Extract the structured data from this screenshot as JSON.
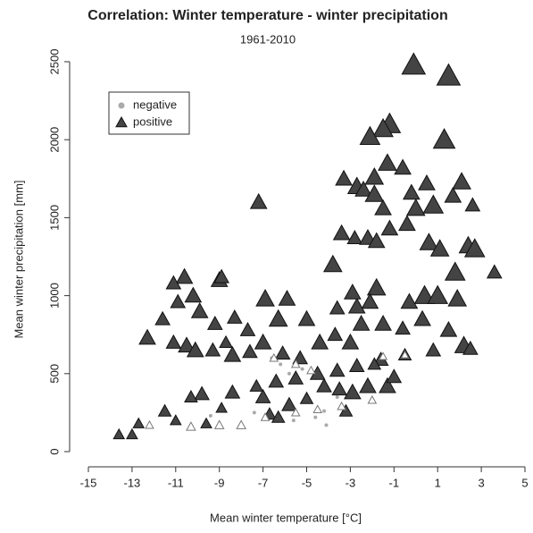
{
  "chart_data": {
    "type": "scatter",
    "title": "Correlation: Winter temperature - winter precipitation",
    "subtitle": "1961-2010",
    "x_label": "Mean winter temperature [°C]",
    "y_label": "Mean winter precipitation [mm]",
    "xlim": [
      -15,
      5
    ],
    "ylim": [
      0,
      2500
    ],
    "xticks": [
      -15,
      -13,
      -11,
      -9,
      -7,
      -5,
      -3,
      -1,
      1,
      3,
      5
    ],
    "yticks": [
      0,
      500,
      1000,
      1500,
      2000,
      2500
    ],
    "grid": false,
    "legend": "top-left",
    "series": [
      {
        "name": "negative",
        "color": "#aaaaaa",
        "marker": "circle",
        "x": [
          -6.6,
          -6.2,
          -5.8,
          -5.2,
          -4.2,
          -4.6,
          -5.6,
          -4.1,
          -9.4,
          -5,
          -3.6,
          -7.4
        ],
        "values": [
          600,
          560,
          500,
          530,
          260,
          220,
          200,
          170,
          230,
          320,
          350,
          250
        ],
        "sizes": [
          0.1,
          0.1,
          0.1,
          0.1,
          0.1,
          0.1,
          0.1,
          0.1,
          0.1,
          0.1,
          0.1,
          0.1
        ]
      },
      {
        "name": "positive",
        "color": "#444444",
        "marker": "triangle",
        "x": [
          -0.1,
          1.5,
          1.3,
          -1.2,
          -1.5,
          -2.1,
          -1.3,
          -0.6,
          -1.9,
          -3.3,
          -2.7,
          -2.4,
          -1.9,
          -0.2,
          0.5,
          -7.2,
          2.1,
          0.8,
          0,
          1.7,
          -1.5,
          2.6,
          -3.8,
          -3.4,
          -2.8,
          -2.2,
          -1.8,
          -1.2,
          -0.4,
          0.6,
          1.1,
          2.4,
          2.7,
          1.8,
          3.6,
          0.4,
          1,
          1.9,
          -0.3,
          -1.8,
          -2.1,
          -2.7,
          -3.6,
          -2.9,
          -5,
          -6.9,
          -5.9,
          -6.3,
          -7.7,
          -10.6,
          -11.1,
          -9,
          -8.9,
          -10.2,
          -9.9,
          -10.9,
          -11.6,
          -12.3,
          -11.1,
          -10.5,
          -10.1,
          -9.3,
          -8.4,
          -8.3,
          -9.2,
          -8.7,
          -7.6,
          -7,
          -6.1,
          -5.3,
          -4.4,
          -3.7,
          -3,
          -2.5,
          -1.5,
          -0.6,
          0.3,
          1.5,
          2.2,
          2.5,
          0.8,
          -0.5,
          -1.6,
          -2.7,
          -3.6,
          -4.5,
          -5.5,
          -6.4,
          -7.3,
          -8.4,
          -9.8,
          -10.3,
          -11.5,
          -12.7,
          -13.6,
          -13,
          -7,
          -5.8,
          -5,
          -4.2,
          -3.5,
          -2.9,
          -2.2,
          -1.3,
          -1,
          -1.9,
          -3.2,
          -6.7,
          -6.3,
          -8.9,
          -9.6,
          -11,
          -9,
          -10.3,
          -8,
          -12.2,
          -6.9,
          -5.5,
          -4.5,
          -3.4,
          -2,
          -6.5,
          -5.5,
          -4.8,
          -1.5,
          -0.5
        ],
        "values": [
          2480,
          2410,
          2000,
          2100,
          2070,
          2020,
          1850,
          1820,
          1760,
          1750,
          1700,
          1680,
          1650,
          1660,
          1720,
          1600,
          1730,
          1580,
          1560,
          1640,
          1560,
          1580,
          1200,
          1400,
          1370,
          1370,
          1350,
          1430,
          1460,
          1340,
          1300,
          1320,
          1300,
          1150,
          1150,
          1000,
          1000,
          980,
          960,
          1050,
          960,
          930,
          920,
          1020,
          850,
          980,
          980,
          850,
          780,
          1120,
          1080,
          1100,
          1120,
          1000,
          900,
          960,
          850,
          730,
          700,
          680,
          650,
          650,
          620,
          860,
          820,
          700,
          640,
          700,
          630,
          600,
          700,
          750,
          700,
          820,
          820,
          790,
          850,
          780,
          680,
          660,
          650,
          620,
          590,
          550,
          520,
          500,
          470,
          450,
          420,
          380,
          370,
          350,
          260,
          180,
          110,
          110,
          350,
          300,
          340,
          420,
          400,
          380,
          420,
          420,
          480,
          560,
          260,
          240,
          220,
          280,
          180,
          200,
          170,
          160,
          170,
          170,
          220,
          250,
          270,
          290,
          330,
          600,
          560,
          520,
          610,
          620
        ],
        "sizes": [
          1,
          1,
          0.9,
          0.9,
          0.8,
          0.8,
          0.7,
          0.6,
          0.7,
          0.6,
          0.7,
          0.6,
          0.7,
          0.6,
          0.6,
          0.6,
          0.7,
          0.8,
          0.7,
          0.6,
          0.6,
          0.5,
          0.7,
          0.6,
          0.5,
          0.6,
          0.6,
          0.6,
          0.6,
          0.7,
          0.7,
          0.7,
          0.8,
          0.8,
          0.5,
          0.8,
          0.8,
          0.7,
          0.6,
          0.7,
          0.6,
          0.6,
          0.5,
          0.6,
          0.6,
          0.7,
          0.6,
          0.7,
          0.5,
          0.6,
          0.5,
          0.6,
          0.5,
          0.6,
          0.6,
          0.5,
          0.5,
          0.6,
          0.5,
          0.6,
          0.6,
          0.5,
          0.6,
          0.5,
          0.5,
          0.4,
          0.5,
          0.6,
          0.5,
          0.5,
          0.6,
          0.5,
          0.6,
          0.6,
          0.6,
          0.5,
          0.6,
          0.6,
          0.7,
          0.5,
          0.5,
          0.4,
          0.5,
          0.5,
          0.5,
          0.5,
          0.5,
          0.5,
          0.4,
          0.5,
          0.5,
          0.4,
          0.4,
          0.3,
          0.3,
          0.3,
          0.5,
          0.5,
          0.4,
          0.5,
          0.5,
          0.6,
          0.6,
          0.6,
          0.5,
          0.4,
          0.4,
          0.4,
          0.4,
          0.3,
          0.3,
          0.3,
          0.2,
          0.2,
          0.2,
          0.15,
          0.15,
          0.15,
          0.15,
          0.15,
          0.15,
          0.15,
          0.15,
          0.15,
          0.12,
          0.1
        ]
      }
    ]
  }
}
